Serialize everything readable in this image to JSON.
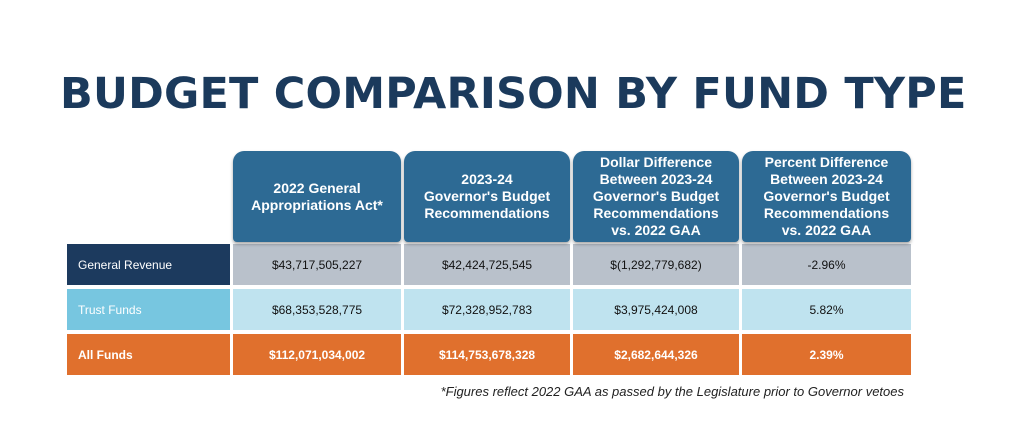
{
  "title": "BUDGET COMPARISON BY FUND TYPE",
  "table": {
    "headers": [
      "",
      "2022 General\nAppropriations Act*",
      "2023-24\nGovernor's Budget\nRecommendations",
      "Dollar Difference\nBetween 2023-24\nGovernor's Budget\nRecommendations\nvs. 2022 GAA",
      "Percent Difference\nBetween 2023-24\nGovernor's Budget\nRecommendations\nvs. 2022 GAA"
    ],
    "rows": [
      {
        "label": "General Revenue",
        "values": [
          "$43,717,505,227",
          "$42,424,725,545",
          "$(1,292,779,682)",
          "-2.96%"
        ]
      },
      {
        "label": "Trust Funds",
        "values": [
          "$68,353,528,775",
          "$72,328,952,783",
          "$3,975,424,008",
          "5.82%"
        ]
      },
      {
        "label": "All Funds",
        "values": [
          "$112,071,034,002",
          "$114,753,678,328",
          "$2,682,644,326",
          "2.39%"
        ]
      }
    ]
  },
  "footnote": "*Figures reflect 2022 GAA as passed by the Legislature prior to Governor vetoes",
  "colors": {
    "title": "#1b3a5c",
    "header": "#2d6a94",
    "general_revenue_label": "#1c3a5e",
    "general_revenue_cells": "#b9c1cb",
    "trust_funds_label": "#77c6e0",
    "trust_funds_cells": "#bfe3ef",
    "all_funds": "#e0702d"
  }
}
